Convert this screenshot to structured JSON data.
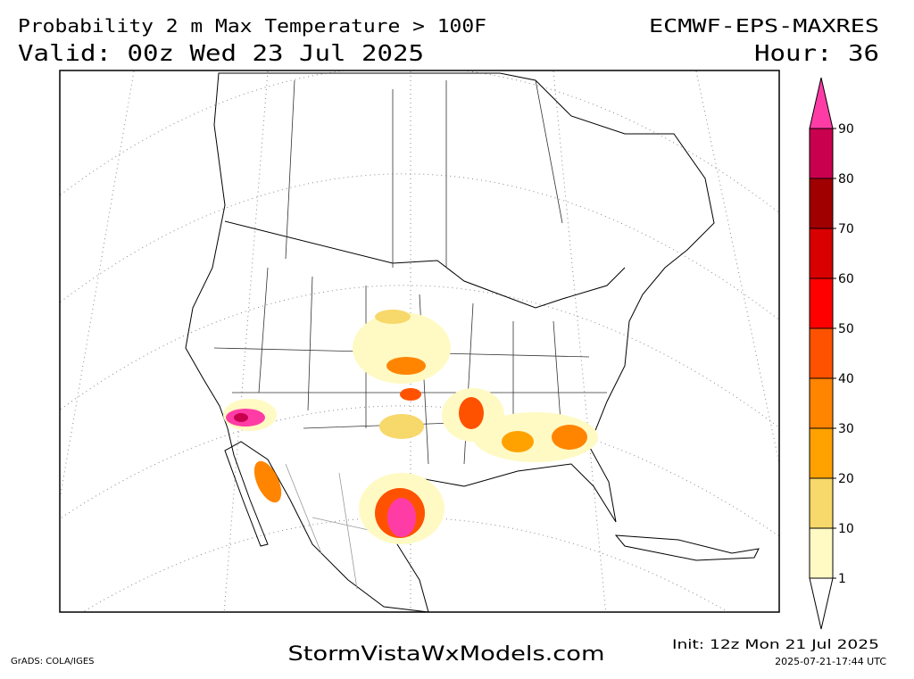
{
  "header": {
    "title": "Probability 2 m Max Temperature > 100F",
    "model": "ECMWF-EPS-MAXRES",
    "valid": "Valid: 00z Wed 23 Jul 2025",
    "hour": "Hour: 36"
  },
  "colorbar": {
    "levels": [
      1,
      10,
      20,
      30,
      40,
      50,
      60,
      70,
      80,
      90
    ],
    "colors": [
      "#ffffff",
      "#fffac4",
      "#f7d86a",
      "#ffa200",
      "#ff8400",
      "#ff5200",
      "#ff0000",
      "#d80000",
      "#a00000",
      "#c8004e",
      "#ff3ca6"
    ]
  },
  "footer": {
    "site": "StormVistaWxModels.com",
    "grads": "GrADS: COLA/IGES",
    "init": "Init: 12z Mon 21 Jul 2025",
    "stamp": "2025-07-21-17:44 UTC"
  }
}
